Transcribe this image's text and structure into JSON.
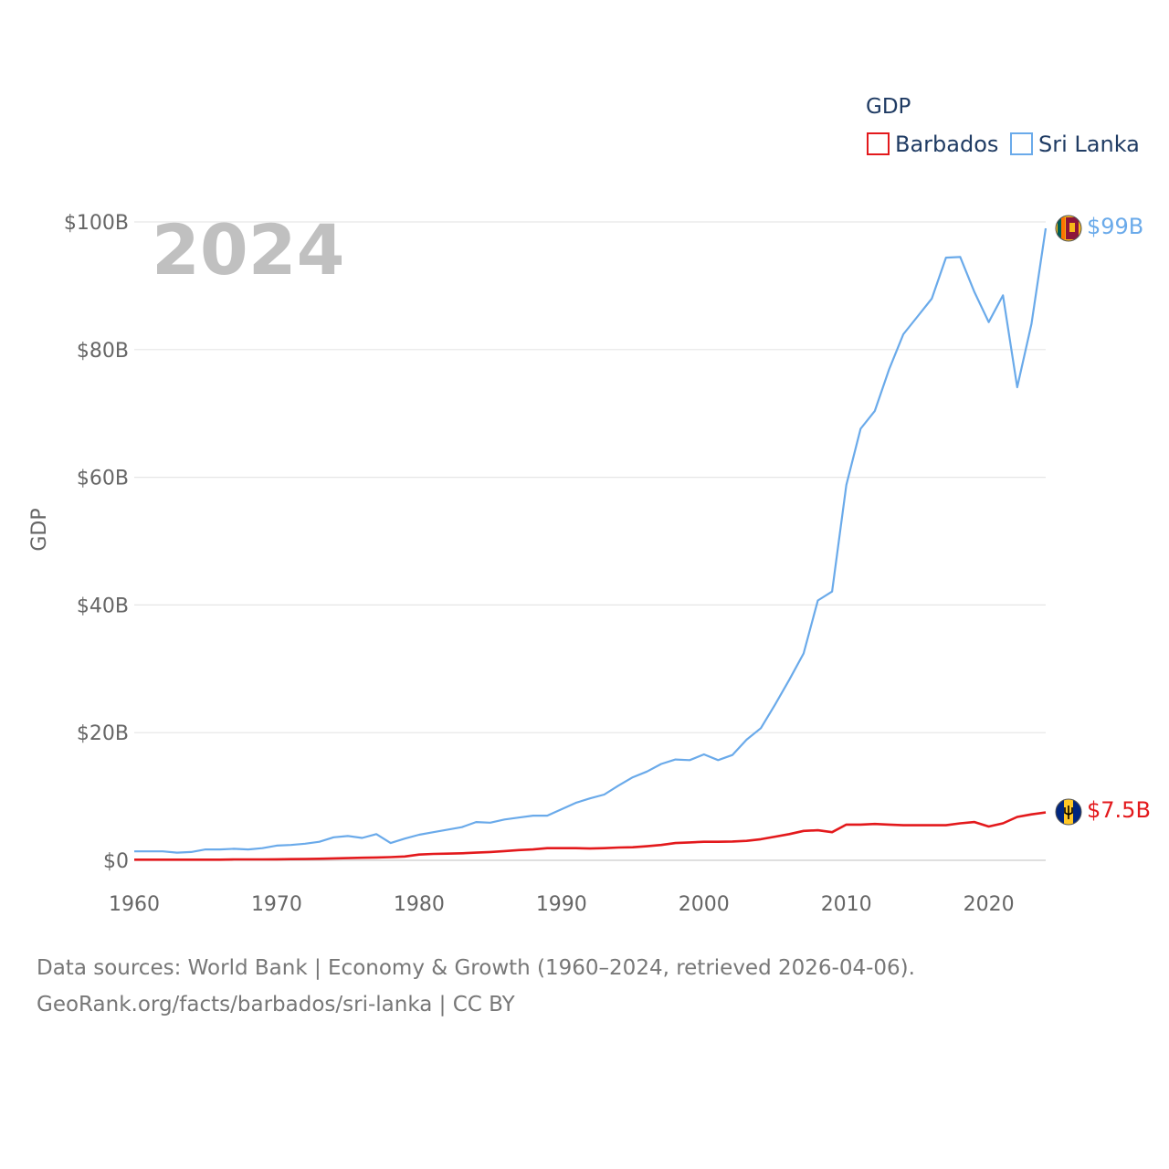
{
  "chart_data": {
    "type": "line",
    "title": "GDP",
    "ylabel": "GDP",
    "xlabel": "",
    "year_label": "2024",
    "xlim": [
      1960,
      2024
    ],
    "ylim": [
      0,
      100
    ],
    "x_ticks": [
      1960,
      1970,
      1980,
      1990,
      2000,
      2010,
      2020
    ],
    "y_ticks": [
      {
        "value": 0,
        "label": "$0"
      },
      {
        "value": 20,
        "label": "$20B"
      },
      {
        "value": 40,
        "label": "$40B"
      },
      {
        "value": 60,
        "label": "$60B"
      },
      {
        "value": 80,
        "label": "$80B"
      },
      {
        "value": 100,
        "label": "$100B"
      }
    ],
    "legend_position": "top-right",
    "grid": true,
    "x": [
      1960,
      1961,
      1962,
      1963,
      1964,
      1965,
      1966,
      1967,
      1968,
      1969,
      1970,
      1971,
      1972,
      1973,
      1974,
      1975,
      1976,
      1977,
      1978,
      1979,
      1980,
      1981,
      1982,
      1983,
      1984,
      1985,
      1986,
      1987,
      1988,
      1989,
      1990,
      1991,
      1992,
      1993,
      1994,
      1995,
      1996,
      1997,
      1998,
      1999,
      2000,
      2001,
      2002,
      2003,
      2004,
      2005,
      2006,
      2007,
      2008,
      2009,
      2010,
      2011,
      2012,
      2013,
      2014,
      2015,
      2016,
      2017,
      2018,
      2019,
      2020,
      2021,
      2022,
      2023,
      2024
    ],
    "series": [
      {
        "name": "Barbados",
        "color": "#e3191c",
        "end_label": "$7.5B",
        "values": [
          0.1,
          0.1,
          0.1,
          0.1,
          0.1,
          0.1,
          0.1,
          0.15,
          0.15,
          0.15,
          0.16,
          0.18,
          0.2,
          0.25,
          0.3,
          0.35,
          0.4,
          0.45,
          0.5,
          0.6,
          0.9,
          1.0,
          1.05,
          1.1,
          1.2,
          1.3,
          1.45,
          1.6,
          1.7,
          1.9,
          1.9,
          1.9,
          1.85,
          1.9,
          2.0,
          2.05,
          2.2,
          2.4,
          2.7,
          2.8,
          2.9,
          2.9,
          2.95,
          3.05,
          3.3,
          3.7,
          4.1,
          4.6,
          4.7,
          4.4,
          5.6,
          5.6,
          5.7,
          5.6,
          5.5,
          5.5,
          5.5,
          5.5,
          5.8,
          6.0,
          5.3,
          5.8,
          6.8,
          7.2,
          7.5
        ]
      },
      {
        "name": "Sri Lanka",
        "color": "#6aaaea",
        "end_label": "$99B",
        "values": [
          1.4,
          1.4,
          1.4,
          1.2,
          1.3,
          1.7,
          1.7,
          1.8,
          1.7,
          1.9,
          2.3,
          2.4,
          2.6,
          2.9,
          3.6,
          3.8,
          3.5,
          4.1,
          2.7,
          3.4,
          4.0,
          4.4,
          4.8,
          5.2,
          6.0,
          5.9,
          6.4,
          6.7,
          7.0,
          7.0,
          8.0,
          9.0,
          9.7,
          10.3,
          11.7,
          13.0,
          13.9,
          15.1,
          15.8,
          15.7,
          16.6,
          15.7,
          16.5,
          18.9,
          20.7,
          24.4,
          28.3,
          32.4,
          40.7,
          42.1,
          58.8,
          67.6,
          70.4,
          76.9,
          82.4,
          85.2,
          88.0,
          94.4,
          94.5,
          89.0,
          84.3,
          88.5,
          74.1,
          84.0,
          99.0
        ]
      }
    ]
  },
  "source": {
    "line1": "Data sources: World Bank | Economy & Growth (1960–2024, retrieved 2026-04-06).",
    "line2": "GeoRank.org/facts/barbados/sri-lanka | CC BY"
  }
}
